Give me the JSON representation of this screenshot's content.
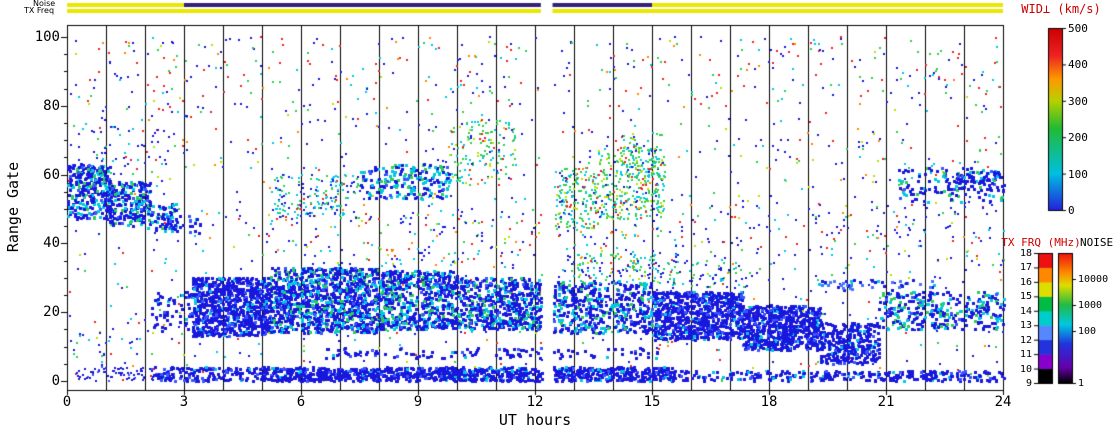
{
  "strips": {
    "noise_label": "Noise",
    "txfreq_label": "TX Freq",
    "noise_segments": [
      {
        "t0": 0,
        "t1": 3,
        "c": "#e8e800"
      },
      {
        "t0": 3,
        "t1": 12.15,
        "c": "#352078"
      },
      {
        "t0": 12.45,
        "t1": 15,
        "c": "#352078"
      },
      {
        "t0": 15,
        "t1": 24,
        "c": "#e8e800"
      }
    ],
    "txfreq_segments": [
      {
        "t0": 0,
        "t1": 12.15,
        "c": "#e8e800"
      },
      {
        "t0": 12.45,
        "t1": 24,
        "c": "#e8e800"
      }
    ]
  },
  "colorbars": {
    "wid": {
      "title": "WID⊥ (km/s)",
      "title_color": "#cc0000",
      "ticks": [
        "0",
        "100",
        "200",
        "300",
        "400",
        "500"
      ],
      "tick_values": [
        0,
        100,
        200,
        300,
        400,
        500
      ],
      "min": 0,
      "max": 500,
      "stops": [
        [
          0,
          "#2222dd"
        ],
        [
          0.2,
          "#00c0e0"
        ],
        [
          0.45,
          "#22bb33"
        ],
        [
          0.6,
          "#b8d000"
        ],
        [
          0.72,
          "#ff9900"
        ],
        [
          0.85,
          "#ee2222"
        ],
        [
          1,
          "#cc0000"
        ]
      ]
    },
    "txfrq": {
      "title": "TX FRQ (MHz)",
      "title_color": "#cc0000",
      "ticks": [
        "9",
        "10",
        "11",
        "12",
        "13",
        "14",
        "15",
        "16",
        "17",
        "18"
      ],
      "tick_values": [
        9,
        10,
        11,
        12,
        13,
        14,
        15,
        16,
        17,
        18
      ],
      "segment_colors": [
        "#000000",
        "#8800cc",
        "#2233dd",
        "#5588ff",
        "#00cccc",
        "#00bb44",
        "#dddd00",
        "#ff8800",
        "#ee1111"
      ]
    },
    "noise": {
      "title": "NOISE",
      "title_color": "#000000",
      "ticks": [
        {
          "label": "10000",
          "f": 0.8
        },
        {
          "label": "1000",
          "f": 0.6
        },
        {
          "label": "100",
          "f": 0.4
        },
        {
          "label": "1",
          "f": 0.0
        }
      ],
      "stops": [
        [
          0,
          "#000000"
        ],
        [
          0.12,
          "#6600aa"
        ],
        [
          0.3,
          "#2233dd"
        ],
        [
          0.45,
          "#00c8e0"
        ],
        [
          0.6,
          "#22bb44"
        ],
        [
          0.75,
          "#dddd00"
        ],
        [
          0.85,
          "#ff8800"
        ],
        [
          1,
          "#ee1111"
        ]
      ]
    }
  },
  "chart_data": {
    "type": "scatter",
    "title": "",
    "xlabel": "UT hours",
    "ylabel": "Range Gate",
    "xlim": [
      0,
      24
    ],
    "ylim": [
      0,
      100
    ],
    "xticks": [
      "0",
      "3",
      "6",
      "9",
      "12",
      "15",
      "18",
      "21",
      "24"
    ],
    "xtick_values": [
      0,
      3,
      6,
      9,
      12,
      15,
      18,
      21,
      24
    ],
    "yticks": [
      "0",
      "20",
      "40",
      "60",
      "80",
      "100"
    ],
    "ytick_values": [
      0,
      20,
      40,
      60,
      80,
      100
    ],
    "grid": "vertical line every 1 hour",
    "legend_position": "right colorbar WID⊥ 0-500 km/s",
    "data_gap": [
      12.17,
      12.43
    ],
    "encoding": "dense radar scatter field approximated by density regions; d = points per hour-gate cell, s = point pixel size, p = palette key",
    "palettes": {
      "blue": [
        [
          "#1818dd",
          0.82
        ],
        [
          "#3a55ff",
          0.12
        ],
        [
          "#00c8e0",
          0.06
        ]
      ],
      "lightBlue": [
        [
          "#4477ff",
          0.6
        ],
        [
          "#1818dd",
          0.3
        ],
        [
          "#00c8e0",
          0.1
        ]
      ],
      "blueCyan": [
        [
          "#1818dd",
          0.62
        ],
        [
          "#00c8e0",
          0.2
        ],
        [
          "#2fcc55",
          0.1
        ],
        [
          "#3a55ff",
          0.08
        ]
      ],
      "blueCyan2": [
        [
          "#1818dd",
          0.45
        ],
        [
          "#00c8e0",
          0.35
        ],
        [
          "#2fcc55",
          0.12
        ],
        [
          "#3a55ff",
          0.08
        ]
      ],
      "cyanGreen": [
        [
          "#00c8e0",
          0.34
        ],
        [
          "#2fcc55",
          0.34
        ],
        [
          "#1818dd",
          0.14
        ],
        [
          "#b8e000",
          0.08
        ],
        [
          "#ff8800",
          0.05
        ],
        [
          "#ee2222",
          0.05
        ]
      ],
      "greenCyan": [
        [
          "#2fcc55",
          0.4
        ],
        [
          "#00c8e0",
          0.3
        ],
        [
          "#b8e000",
          0.12
        ],
        [
          "#1818dd",
          0.1
        ],
        [
          "#ee2222",
          0.08
        ]
      ],
      "cyanGreenBlue": [
        [
          "#00c8e0",
          0.35
        ],
        [
          "#2fcc55",
          0.25
        ],
        [
          "#1818dd",
          0.3
        ],
        [
          "#ee2222",
          0.1
        ]
      ],
      "greenBlue": [
        [
          "#2fcc55",
          0.4
        ],
        [
          "#1818dd",
          0.4
        ],
        [
          "#00c8e0",
          0.2
        ]
      ],
      "mixed": [
        [
          "#1818dd",
          0.42
        ],
        [
          "#00c8e0",
          0.15
        ],
        [
          "#2fcc55",
          0.14
        ],
        [
          "#ee2222",
          0.16
        ],
        [
          "#ff8800",
          0.06
        ],
        [
          "#b8e000",
          0.07
        ]
      ],
      "redMix": [
        [
          "#ee2222",
          0.32
        ],
        [
          "#1818dd",
          0.28
        ],
        [
          "#2fcc55",
          0.16
        ],
        [
          "#00c8e0",
          0.12
        ],
        [
          "#ff8800",
          0.12
        ]
      ],
      "blueMix": [
        [
          "#1818dd",
          0.6
        ],
        [
          "#00c8e0",
          0.18
        ],
        [
          "#2fcc55",
          0.12
        ],
        [
          "#ee2222",
          0.1
        ]
      ]
    },
    "regions": [
      {
        "t0": 0,
        "t1": 24,
        "g0": 0,
        "g1": 100,
        "d": 0.5,
        "s": 2,
        "p": "mixed"
      },
      {
        "t0": 0,
        "t1": 24,
        "g0": 78,
        "g1": 100,
        "d": 0.35,
        "s": 2,
        "p": "redMix"
      },
      {
        "t0": 4.5,
        "t1": 12.1,
        "g0": 33,
        "g1": 50,
        "d": 1.0,
        "s": 2,
        "p": "mixed"
      },
      {
        "t0": 12.5,
        "t1": 15.5,
        "g0": 30,
        "g1": 44,
        "d": 1.2,
        "s": 2,
        "p": "mixed"
      },
      {
        "t0": 15.5,
        "t1": 21.5,
        "g0": 28,
        "g1": 52,
        "d": 0.7,
        "s": 2,
        "p": "mixed"
      },
      {
        "t0": 21.5,
        "t1": 24,
        "g0": 33,
        "g1": 52,
        "d": 0.9,
        "s": 2,
        "p": "mixed"
      },
      {
        "t0": 0,
        "t1": 2.2,
        "g0": 5,
        "g1": 14,
        "d": 1.3,
        "s": 2,
        "p": "blueMix"
      },
      {
        "t0": 0.25,
        "t1": 2.2,
        "g0": 0,
        "g1": 4,
        "d": 9,
        "s": 2,
        "p": "blue"
      },
      {
        "t0": 2.2,
        "t1": 5,
        "g0": 0,
        "g1": 4,
        "d": 14,
        "s": 3,
        "p": "blue"
      },
      {
        "t0": 5,
        "t1": 12.15,
        "g0": 0,
        "g1": 4,
        "d": 26,
        "s": 3,
        "p": "blue"
      },
      {
        "t0": 12.45,
        "t1": 15.5,
        "g0": 0,
        "g1": 4,
        "d": 26,
        "s": 3,
        "p": "blue"
      },
      {
        "t0": 15.5,
        "t1": 20,
        "g0": 0,
        "g1": 3,
        "d": 10,
        "s": 3,
        "p": "blue"
      },
      {
        "t0": 20,
        "t1": 24,
        "g0": 0,
        "g1": 3,
        "d": 13,
        "s": 3,
        "p": "blue"
      },
      {
        "t0": 6.5,
        "t1": 12.15,
        "g0": 6.5,
        "g1": 9.5,
        "d": 5,
        "s": 3,
        "p": "blue"
      },
      {
        "t0": 12.45,
        "t1": 15.2,
        "g0": 6.5,
        "g1": 9.5,
        "d": 4,
        "s": 3,
        "p": "blue"
      },
      {
        "t0": 2.0,
        "t1": 3.2,
        "g0": 14,
        "g1": 26,
        "d": 4,
        "s": 3,
        "p": "blue"
      },
      {
        "t0": 3.2,
        "t1": 5.2,
        "g0": 13,
        "g1": 30,
        "d": 24,
        "s": 3,
        "p": "blue"
      },
      {
        "t0": 5.2,
        "t1": 8,
        "g0": 14,
        "g1": 33,
        "d": 20,
        "s": 3,
        "p": "blueCyan"
      },
      {
        "t0": 8,
        "t1": 10,
        "g0": 15,
        "g1": 32,
        "d": 18,
        "s": 3,
        "p": "blueCyan"
      },
      {
        "t0": 10,
        "t1": 12.15,
        "g0": 15,
        "g1": 30,
        "d": 16,
        "s": 3,
        "p": "blueCyan"
      },
      {
        "t0": 12.45,
        "t1": 15,
        "g0": 14,
        "g1": 29,
        "d": 12,
        "s": 3,
        "p": "blueCyan"
      },
      {
        "t0": 12.8,
        "t1": 15.2,
        "g0": 28,
        "g1": 37,
        "d": 5,
        "s": 2,
        "p": "cyanGreen"
      },
      {
        "t0": 15,
        "t1": 17.3,
        "g0": 12,
        "g1": 26,
        "d": 24,
        "s": 3,
        "p": "blue"
      },
      {
        "t0": 17.3,
        "t1": 19.3,
        "g0": 9,
        "g1": 22,
        "d": 26,
        "s": 3,
        "p": "blue"
      },
      {
        "t0": 19.3,
        "t1": 20.8,
        "g0": 5,
        "g1": 17,
        "d": 18,
        "s": 3,
        "p": "blue"
      },
      {
        "t0": 20.8,
        "t1": 24,
        "g0": 15,
        "g1": 26,
        "d": 9,
        "s": 3,
        "p": "blueCyan"
      },
      {
        "t0": 19.2,
        "t1": 22.2,
        "g0": 26.5,
        "g1": 29.5,
        "d": 5,
        "s": 3,
        "p": "lightBlue"
      },
      {
        "t0": 0,
        "t1": 1.1,
        "g0": 47,
        "g1": 63,
        "d": 16,
        "s": 3,
        "p": "blueCyan"
      },
      {
        "t0": 1.0,
        "t1": 2.1,
        "g0": 45,
        "g1": 58,
        "d": 16,
        "s": 3,
        "p": "blueCyan"
      },
      {
        "t0": 2.0,
        "t1": 2.8,
        "g0": 44,
        "g1": 52,
        "d": 10,
        "s": 3,
        "p": "blueCyan"
      },
      {
        "t0": 2.4,
        "t1": 3.4,
        "g0": 43,
        "g1": 48,
        "d": 8,
        "s": 3,
        "p": "blue"
      },
      {
        "t0": 0.2,
        "t1": 2.6,
        "g0": 60,
        "g1": 74,
        "d": 1.6,
        "s": 2,
        "p": "blueMix"
      },
      {
        "t0": 5.3,
        "t1": 7.5,
        "g0": 47,
        "g1": 60,
        "d": 6,
        "s": 2,
        "p": "cyanGreenBlue"
      },
      {
        "t0": 7.5,
        "t1": 9.8,
        "g0": 53,
        "g1": 63,
        "d": 8,
        "s": 3,
        "p": "blueCyan2"
      },
      {
        "t0": 9.8,
        "t1": 11.5,
        "g0": 57,
        "g1": 76,
        "d": 4.5,
        "s": 2,
        "p": "greenCyan"
      },
      {
        "t0": 12.5,
        "t1": 13.6,
        "g0": 44,
        "g1": 62,
        "d": 9,
        "s": 2,
        "p": "greenCyan"
      },
      {
        "t0": 13.6,
        "t1": 15.3,
        "g0": 47,
        "g1": 68,
        "d": 9,
        "s": 2,
        "p": "greenCyan"
      },
      {
        "t0": 14.2,
        "t1": 15.3,
        "g0": 58,
        "g1": 72,
        "d": 4,
        "s": 2,
        "p": "greenCyan"
      },
      {
        "t0": 21.3,
        "t1": 24,
        "g0": 52,
        "g1": 62,
        "d": 5,
        "s": 3,
        "p": "blueCyan"
      },
      {
        "t0": 22.8,
        "t1": 24,
        "g0": 55,
        "g1": 61,
        "d": 7,
        "s": 3,
        "p": "blue"
      },
      {
        "t0": 15.2,
        "t1": 17.5,
        "g0": 27,
        "g1": 35,
        "d": 4,
        "s": 2,
        "p": "greenBlue"
      }
    ]
  }
}
